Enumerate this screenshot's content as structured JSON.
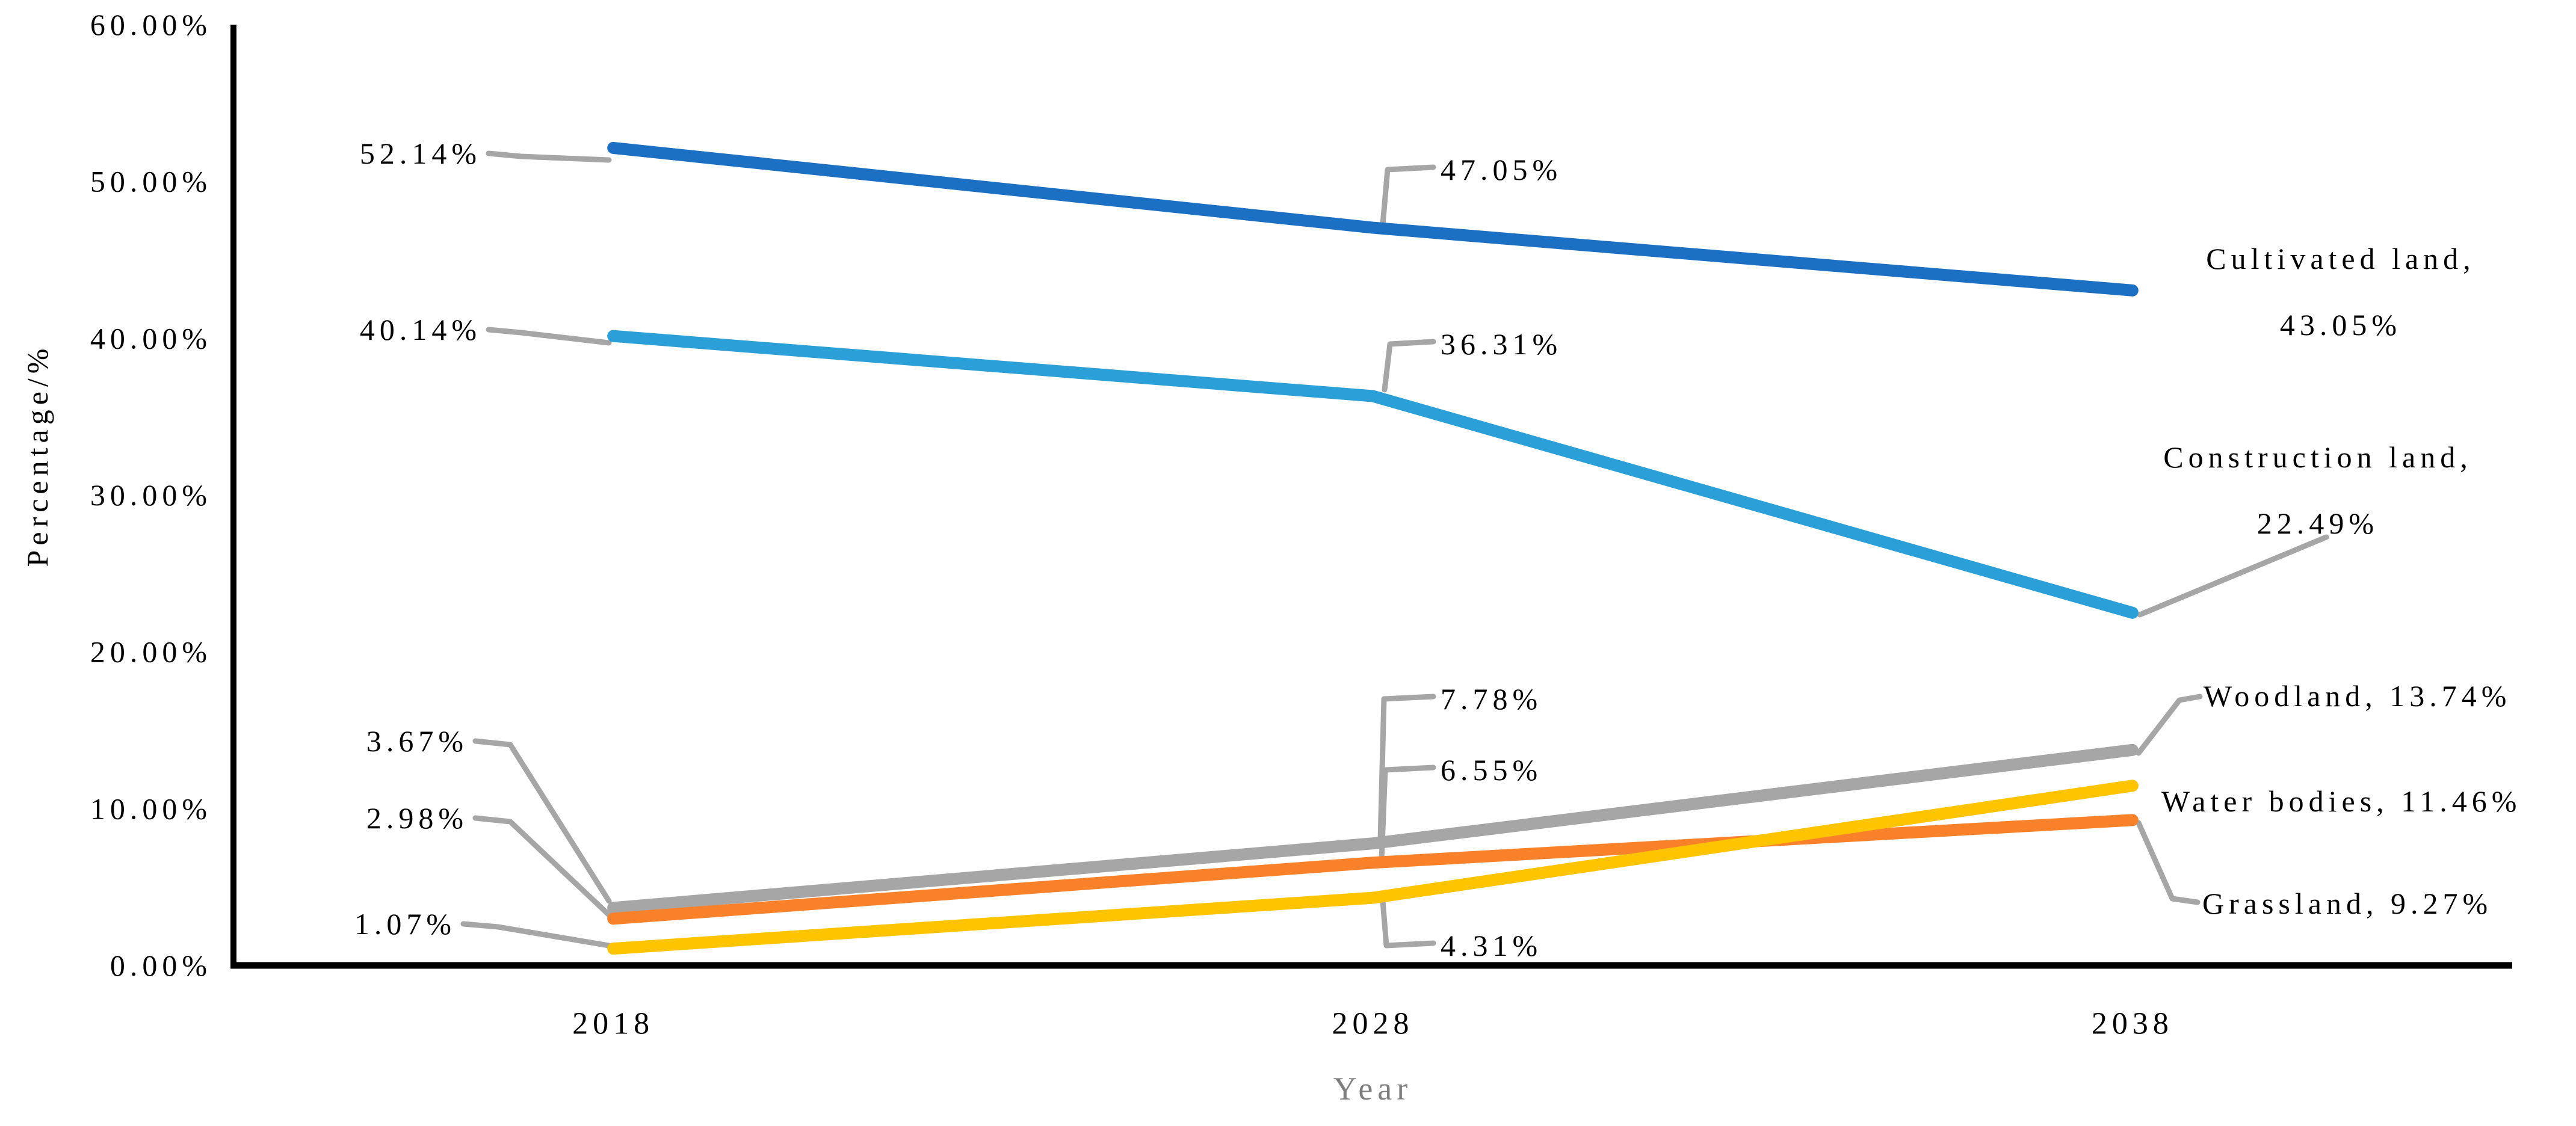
{
  "chart_data": {
    "type": "line",
    "title": "",
    "xlabel": "Year",
    "ylabel": "Percentage/%",
    "categories": [
      "2018",
      "2028",
      "2038"
    ],
    "ylim": [
      0,
      60
    ],
    "y_tick_step": 10,
    "y_tick_labels": [
      "0.00%",
      "10.00%",
      "20.00%",
      "30.00%",
      "40.00%",
      "50.00%",
      "60.00%"
    ],
    "grid": false,
    "legend_position": "end-of-line-labels",
    "axis_color": "#000000",
    "leader_line_color": "#A6A6A6",
    "xlabel_color": "#7F7F7F",
    "text_color": "#000000",
    "background": "#FFFFFF",
    "series": [
      {
        "name": "Cultivated land",
        "color": "#1B70C4",
        "values": [
          52.14,
          47.05,
          43.05
        ],
        "point_labels": [
          "52.14%",
          "47.05%"
        ],
        "end_label_lines": [
          "Cultivated land,",
          "43.05%"
        ]
      },
      {
        "name": "Construction land",
        "color": "#2B9FD8",
        "values": [
          40.14,
          36.31,
          22.49
        ],
        "point_labels": [
          "40.14%",
          "36.31%"
        ],
        "end_label_lines": [
          "Construction land,",
          "22.49%"
        ]
      },
      {
        "name": "Woodland",
        "color": "#A6A6A6",
        "values": [
          3.67,
          7.78,
          13.74
        ],
        "point_labels": [
          "3.67%",
          "7.78%"
        ],
        "end_label_lines": [
          "Woodland, 13.74%"
        ]
      },
      {
        "name": "Grassland",
        "color": "#F9812A",
        "values": [
          2.98,
          6.55,
          9.27
        ],
        "point_labels": [
          "2.98%",
          "6.55%"
        ],
        "end_label_lines": [
          "Grassland, 9.27%"
        ]
      },
      {
        "name": "Water bodies",
        "color": "#FFC400",
        "values": [
          1.07,
          4.31,
          11.46
        ],
        "point_labels": [
          "1.07%",
          "4.31%"
        ],
        "end_label_lines": [
          "Water bodies, 11.46%"
        ]
      }
    ]
  }
}
